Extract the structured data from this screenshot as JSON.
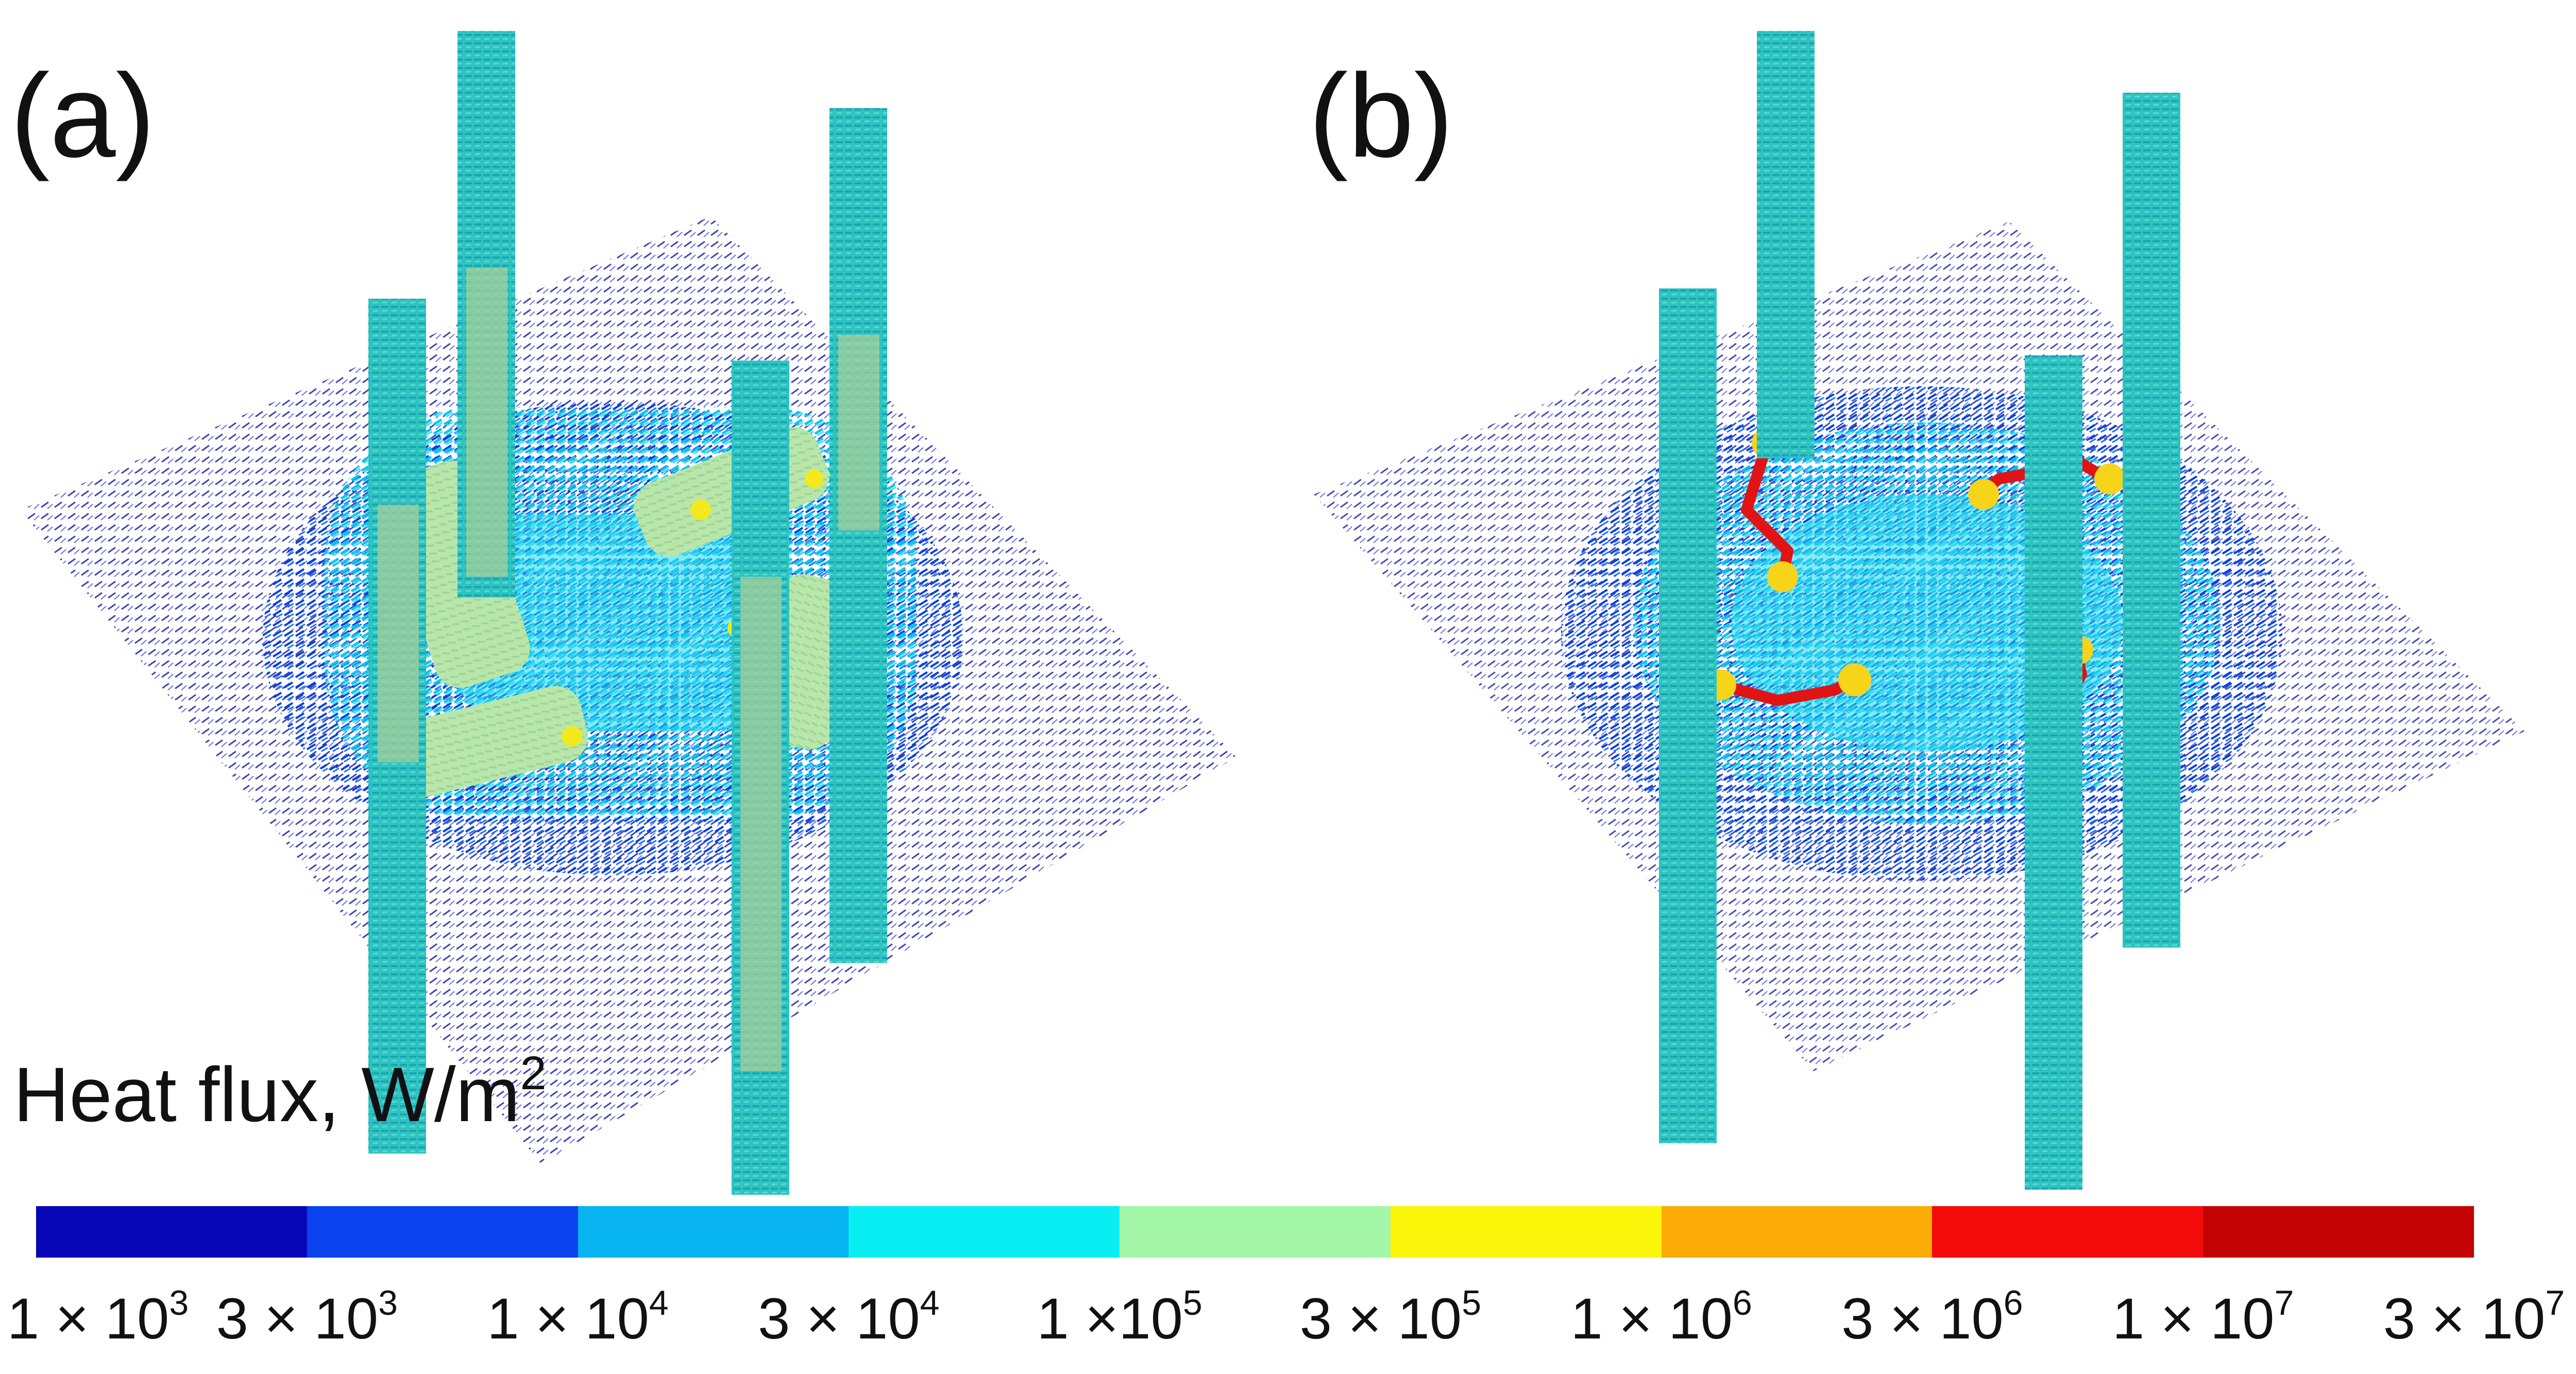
{
  "panels": [
    {
      "label": "(a)"
    },
    {
      "label": "(b)"
    }
  ],
  "colorbar": {
    "title": "Heat flux, W/m",
    "title_exponent": "2",
    "colors": [
      "#0707b8",
      "#0a42ee",
      "#07b4f1",
      "#08eef3",
      "#a3f6a7",
      "#fbf50a",
      "#fbac07",
      "#f40b0b",
      "#c40404"
    ],
    "ticks": [
      {
        "mantissa": "1 × 10",
        "exponent": "3"
      },
      {
        "mantissa": "3 × 10",
        "exponent": "3"
      },
      {
        "mantissa": "1 × 10",
        "exponent": "4"
      },
      {
        "mantissa": "3 × 10",
        "exponent": "4"
      },
      {
        "mantissa": "1 ×10",
        "exponent": "5"
      },
      {
        "mantissa": "3 × 10",
        "exponent": "5"
      },
      {
        "mantissa": "1 × 10",
        "exponent": "6"
      },
      {
        "mantissa": "3 × 10",
        "exponent": "6"
      },
      {
        "mantissa": "1 × 10",
        "exponent": "7"
      },
      {
        "mantissa": "3 × 10",
        "exponent": "7"
      }
    ]
  }
}
